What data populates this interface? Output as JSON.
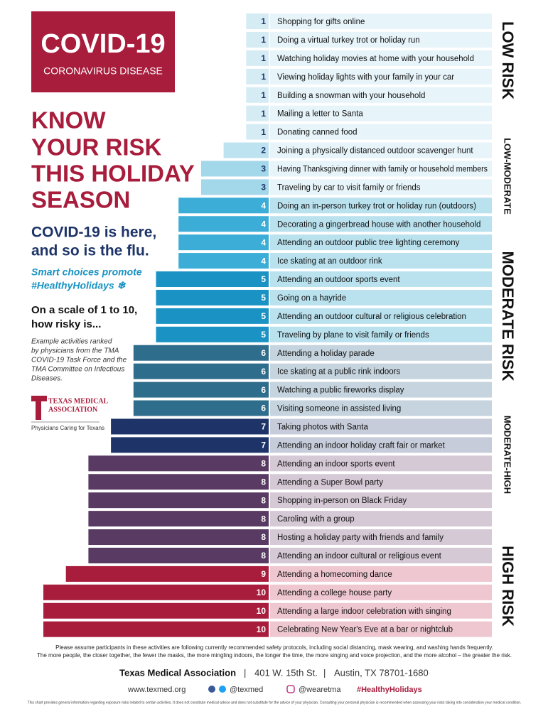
{
  "header": {
    "badge_title": "COVID-19",
    "badge_subtitle": "CORONAVIRUS DISEASE",
    "headline": [
      "KNOW",
      "YOUR RISK",
      "THIS HOLIDAY",
      "SEASON"
    ],
    "subhead": [
      "COVID-19 is here,",
      "and so is the flu."
    ],
    "tagline": [
      "Smart choices promote",
      "#HealthyHolidays ❄"
    ],
    "question": [
      "On a scale of 1 to 10,",
      "how risky is..."
    ],
    "note": [
      "Example activities ranked",
      "by physicians from the TMA",
      "COVID-19 Task Force and the",
      "TMA Committee on Infectious",
      "Diseases."
    ],
    "logo": [
      "TEXAS MEDICAL",
      "ASSOCIATION"
    ],
    "logo_tagline": "Physicians Caring for Texans"
  },
  "chart_data": {
    "type": "bar",
    "orientation": "horizontal",
    "categories": [
      "Shopping for gifts online",
      "Doing a virtual turkey trot or holiday run",
      "Watching holiday movies at home with your household",
      "Viewing holiday lights with your family in your car",
      "Building a snowman with your household",
      "Mailing a letter to Santa",
      "Donating canned food",
      "Joining a physically distanced outdoor scavenger hunt",
      "Having Thanksgiving dinner with family or household members",
      "Traveling by car to visit family or friends",
      "Doing an in-person turkey trot or holiday run (outdoors)",
      "Decorating a gingerbread house with another household",
      "Attending an outdoor public tree lighting ceremony",
      "Ice skating at an outdoor rink",
      "Attending an outdoor sports event",
      "Going on a hayride",
      "Attending an outdoor cultural or religious celebration",
      "Traveling by plane to visit family or friends",
      "Attending a holiday parade",
      "Ice skating at a public rink indoors",
      "Watching a public fireworks display",
      "Visiting someone in assisted living",
      "Taking photos with Santa",
      "Attending an indoor holiday craft fair or market",
      "Attending an indoor sports event",
      "Attending a Super Bowl party",
      "Shopping in-person on Black Friday",
      "Caroling with a group",
      "Hosting a holiday party with friends and family",
      "Attending an indoor cultural or religious event",
      "Attending a homecoming dance",
      "Attending a college house party",
      "Attending a large indoor celebration with singing",
      "Celebrating New Year's Eve at a bar or nightclub"
    ],
    "values": [
      1,
      1,
      1,
      1,
      1,
      1,
      1,
      2,
      3,
      3,
      4,
      4,
      4,
      4,
      5,
      5,
      5,
      5,
      6,
      6,
      6,
      6,
      7,
      7,
      8,
      8,
      8,
      8,
      8,
      8,
      9,
      10,
      10,
      10
    ],
    "colors": [
      "#d6ecf4",
      "#d6ecf4",
      "#d6ecf4",
      "#d6ecf4",
      "#d6ecf4",
      "#d6ecf4",
      "#d6ecf4",
      "#bde3f0",
      "#a3d7ea",
      "#a3d7ea",
      "#3badd6",
      "#3badd6",
      "#3badd6",
      "#3badd6",
      "#1a93c4",
      "#1a93c4",
      "#1a93c4",
      "#1a93c4",
      "#2f6d8c",
      "#2f6d8c",
      "#2f6d8c",
      "#2f6d8c",
      "#1e3468",
      "#1e3468",
      "#583a62",
      "#583a62",
      "#583a62",
      "#583a62",
      "#583a62",
      "#583a62",
      "#a81c3c",
      "#a81c3c",
      "#a81c3c",
      "#a81c3c"
    ],
    "label_colors": [
      "#e7f4f9",
      "#e7f4f9",
      "#e7f4f9",
      "#e7f4f9",
      "#e7f4f9",
      "#e7f4f9",
      "#e7f4f9",
      "#e7f4f9",
      "#e7f4f9",
      "#e7f4f9",
      "#b9e1ee",
      "#b9e1ee",
      "#b9e1ee",
      "#b9e1ee",
      "#b9e1ee",
      "#b9e1ee",
      "#b9e1ee",
      "#b9e1ee",
      "#c5d4de",
      "#c5d4de",
      "#c5d4de",
      "#c5d4de",
      "#c6ccd9",
      "#c6ccd9",
      "#d5c9d6",
      "#d5c9d6",
      "#d5c9d6",
      "#d5c9d6",
      "#d5c9d6",
      "#d5c9d6",
      "#eec7d1",
      "#eec7d1",
      "#eec7d1",
      "#eec7d1"
    ],
    "xlim": [
      0,
      10
    ],
    "risk_zones": [
      "LOW RISK",
      "LOW-MODERATE",
      "MODERATE RISK",
      "MODERATE-HIGH",
      "HIGH RISK"
    ]
  },
  "footer": {
    "notes": [
      "Please assume participants in these activities are following currently recommended safety protocols, including social distancing, mask wearing, and washing hands frequently.",
      "The more people, the closer together, the fewer the masks, the more mingling indoors, the longer the time, the more singing and voice projection, and the more alcohol – the greater the risk."
    ],
    "org": "Texas Medical Association",
    "street": "401 W. 15th St.",
    "city": "Austin, TX 78701-1680",
    "website": "www.texmed.org",
    "twitter": "@texmed",
    "instagram": "@wearetma",
    "hashtag": "#HealthyHolidays",
    "disclaimer": "This chart provides general information regarding exposure risks related to certain activities. It does not constitute medical advice and does not substitute for the advice of your physician. Consulting your personal physician is recommended when assessing your risks taking into consideration your medical condition."
  }
}
